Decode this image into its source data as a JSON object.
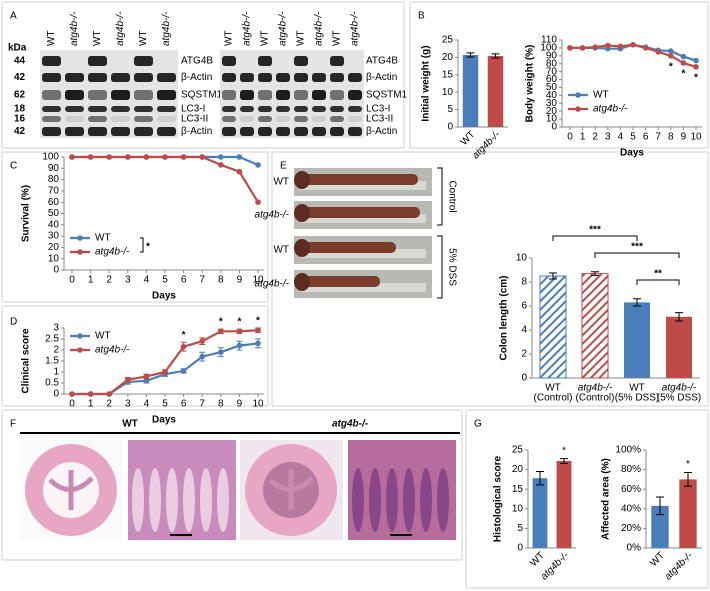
{
  "figure": {
    "panel_labels": [
      "A",
      "B",
      "C",
      "D",
      "E",
      "F",
      "G"
    ],
    "blot_kda_label": "kDa",
    "blot_kda": [
      "44",
      "42",
      "62",
      "18",
      "16",
      "42"
    ],
    "blot_left_lanes": [
      "WT",
      "atg4b-/-",
      "WT",
      "atg4b-/-",
      "WT",
      "atg4b-/-"
    ],
    "blot_right_lanes": [
      "WT",
      "atg4b-/-",
      "WT",
      "atg4b-/-",
      "WT",
      "atg4b-/-",
      "WT",
      "atg4b-/-"
    ],
    "blot_left_proteins": [
      "ATG4B",
      "β-Actin",
      "SQSTM1",
      "LC3-I",
      "LC3-II",
      "β-Actin"
    ],
    "blot_right_proteins": [
      "ATG4B",
      "β-Actin",
      "SQSTM1",
      "LC3-I",
      "LC3-II",
      "β-Actin"
    ],
    "photo_labels": [
      "WT",
      "atg4b-/-",
      "WT",
      "atg4b-/-"
    ],
    "photo_groups": [
      "Control",
      "5% DSS"
    ],
    "histology_groups": [
      "WT",
      "atg4b-/-"
    ]
  },
  "chart_data": [
    {
      "type": "bar",
      "ylabel": "Initial weight (g)",
      "categories": [
        "WT",
        "atg4b-/-"
      ],
      "values": [
        20.7,
        20.4
      ],
      "errors": [
        0.6,
        0.6
      ],
      "colors": [
        "#4a7ebb",
        "#be4b48"
      ],
      "ylim": [
        0,
        25
      ],
      "yticks": [
        0,
        5,
        10,
        15,
        20,
        25
      ],
      "rotate_category_labels": true
    },
    {
      "type": "line",
      "ylabel": "Body weight (%)",
      "xlabel": "Days",
      "x": [
        0,
        1,
        2,
        3,
        4,
        5,
        6,
        7,
        8,
        9,
        10
      ],
      "series": [
        {
          "name": "WT",
          "color": "#4a7ebb",
          "values": [
            100,
            100,
            100,
            99,
            99,
            104,
            101,
            97,
            96,
            89,
            84
          ]
        },
        {
          "name": "atg4b-/-",
          "color": "#be4b48",
          "values": [
            100,
            100,
            101,
            103,
            102,
            104,
            100,
            95,
            90,
            81,
            76
          ]
        }
      ],
      "xlim": [
        0,
        10
      ],
      "xticks": [
        0,
        1,
        2,
        3,
        4,
        5,
        6,
        7,
        8,
        9,
        10
      ],
      "ylim": [
        0,
        110
      ],
      "yticks": [
        0,
        10,
        20,
        30,
        40,
        50,
        60,
        70,
        80,
        90,
        100,
        110
      ],
      "legend": "lower-left",
      "annotation_side": "below",
      "annotations": [
        {
          "text": "*",
          "x": 8
        },
        {
          "text": "*",
          "x": 9
        },
        {
          "text": "*",
          "x": 10
        }
      ]
    },
    {
      "type": "line",
      "ylabel": "Survival (%)",
      "xlabel": "Days",
      "x": [
        0,
        1,
        2,
        3,
        4,
        5,
        6,
        7,
        8,
        9,
        10
      ],
      "series": [
        {
          "name": "WT",
          "color": "#4a7ebb",
          "values": [
            100,
            100,
            100,
            100,
            100,
            100,
            100,
            100,
            100,
            100,
            93
          ]
        },
        {
          "name": "atg4b-/-",
          "color": "#be4b48",
          "values": [
            100,
            100,
            100,
            100,
            100,
            100,
            100,
            100,
            93,
            87,
            60
          ]
        }
      ],
      "xlim": [
        0,
        10
      ],
      "xticks": [
        0,
        1,
        2,
        3,
        4,
        5,
        6,
        7,
        8,
        9,
        10
      ],
      "ylim": [
        0,
        100
      ],
      "yticks": [
        0,
        10,
        20,
        30,
        40,
        50,
        60,
        70,
        80,
        90,
        100
      ],
      "legend": "lower-left",
      "legend_note": "*"
    },
    {
      "type": "line",
      "ylabel": "Clinical score",
      "xlabel": "Days",
      "x": [
        0,
        1,
        2,
        3,
        4,
        5,
        6,
        7,
        8,
        9,
        10
      ],
      "series": [
        {
          "name": "WT",
          "color": "#4a7ebb",
          "values": [
            0,
            0,
            0,
            0.55,
            0.6,
            0.9,
            1.05,
            1.7,
            1.9,
            2.2,
            2.3
          ],
          "errors": [
            0,
            0,
            0,
            0.1,
            0.1,
            0.1,
            0.1,
            0.2,
            0.2,
            0.2,
            0.2
          ]
        },
        {
          "name": "atg4b-/-",
          "color": "#be4b48",
          "values": [
            0,
            0,
            0,
            0.65,
            0.8,
            1.0,
            2.15,
            2.4,
            2.85,
            2.85,
            2.9
          ],
          "errors": [
            0,
            0,
            0,
            0.1,
            0.1,
            0.1,
            0.2,
            0.15,
            0.1,
            0.1,
            0.1
          ]
        }
      ],
      "xlim": [
        0,
        10
      ],
      "xticks": [
        0,
        1,
        2,
        3,
        4,
        5,
        6,
        7,
        8,
        9,
        10
      ],
      "ylim": [
        0,
        3
      ],
      "yticks": [
        0,
        0.5,
        1,
        1.5,
        2,
        2.5,
        3
      ],
      "legend": "upper-left",
      "annotation_side": "above",
      "annotations": [
        {
          "text": "*",
          "x": 6
        },
        {
          "text": "*",
          "x": 8
        },
        {
          "text": "*",
          "x": 9
        },
        {
          "text": "*",
          "x": 10
        }
      ]
    },
    {
      "type": "bar",
      "ylabel": "Colon length (cm)",
      "categories": [
        "WT",
        "atg4b-/-",
        "WT",
        "atg4b-/-"
      ],
      "category_notes": [
        "(Control)",
        "(Control)",
        "(5% DSS)",
        "(5% DSS)"
      ],
      "values": [
        8.5,
        8.7,
        6.3,
        5.1
      ],
      "errors": [
        0.25,
        0.15,
        0.3,
        0.35
      ],
      "colors": [
        "#4a7ebb",
        "#be4b48",
        "#4a7ebb",
        "#be4b48"
      ],
      "hatched": [
        true,
        true,
        false,
        false
      ],
      "ylim": [
        0,
        10
      ],
      "yticks": [
        0,
        2,
        4,
        6,
        8,
        10
      ],
      "significance": [
        "***",
        "***",
        "**"
      ]
    },
    {
      "type": "bar",
      "ylabel": "Histological score",
      "categories": [
        "WT",
        "atg4b-/-"
      ],
      "values": [
        17.8,
        22.2
      ],
      "errors": [
        1.7,
        0.6
      ],
      "colors": [
        "#4a7ebb",
        "#be4b48"
      ],
      "ylim": [
        0,
        25
      ],
      "yticks": [
        0,
        5,
        10,
        15,
        20,
        25
      ],
      "rotate_category_labels": true,
      "star_labels": [
        null,
        "*"
      ]
    },
    {
      "type": "bar",
      "ylabel": "Affected area (%)",
      "categories": [
        "WT",
        "atg4b-/-"
      ],
      "values": [
        43,
        70
      ],
      "errors": [
        9,
        7
      ],
      "colors": [
        "#4a7ebb",
        "#be4b48"
      ],
      "ylim": [
        0,
        100
      ],
      "yticks": [
        {
          "value": 0,
          "label": "0%"
        },
        {
          "value": 20,
          "label": "20%"
        },
        {
          "value": 40,
          "label": "40%"
        },
        {
          "value": 60,
          "label": "60%"
        },
        {
          "value": 80,
          "label": "80%"
        },
        {
          "value": 100,
          "label": "100%"
        }
      ],
      "rotate_category_labels": true,
      "star_labels": [
        null,
        "*"
      ]
    }
  ]
}
